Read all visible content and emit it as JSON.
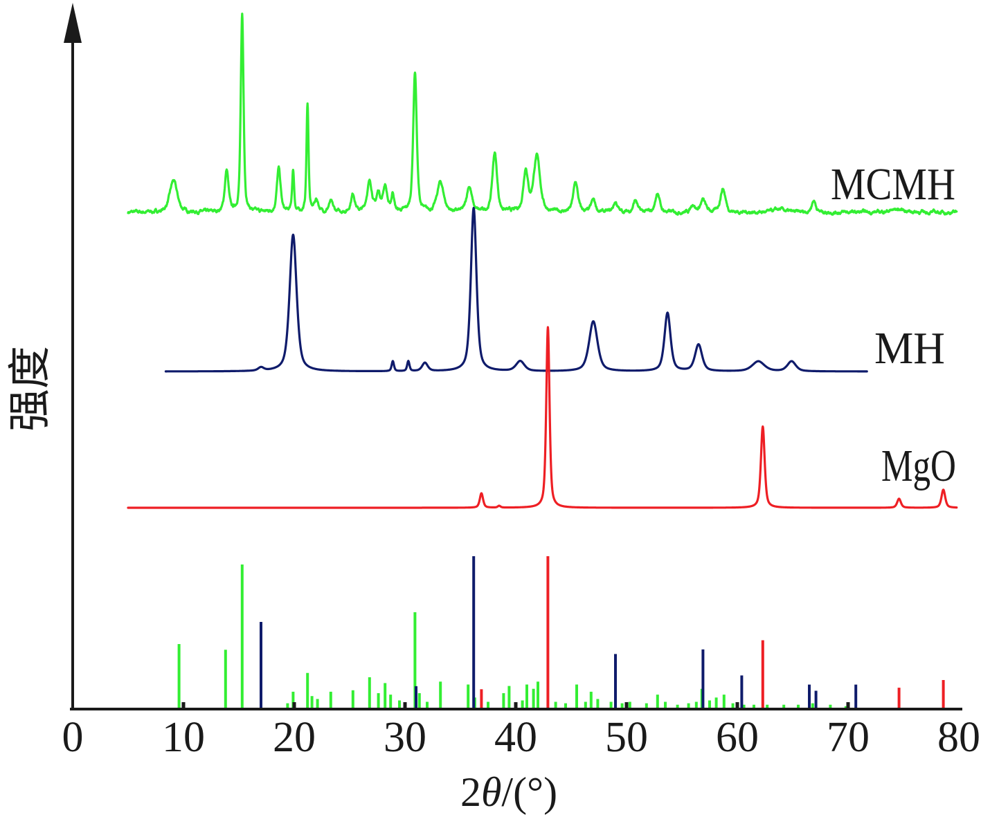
{
  "chart_data": {
    "type": "line",
    "xlabel": "2θ/(°)",
    "ylabel": "强度",
    "xlim": [
      0,
      80
    ],
    "xticks": [
      0,
      10,
      20,
      30,
      40,
      50,
      60,
      70,
      80
    ],
    "yticks": [],
    "grid": false,
    "series": [
      {
        "name": "MCMH",
        "color": "#33ee33",
        "x_range": [
          5,
          79.8
        ],
        "peaks": [
          [
            9.1,
            16,
            0.8
          ],
          [
            13.9,
            21,
            0.4
          ],
          [
            15.3,
            100,
            0.3
          ],
          [
            18.6,
            22,
            0.4
          ],
          [
            19.9,
            21,
            0.22
          ],
          [
            21.2,
            55,
            0.22
          ],
          [
            22.0,
            6,
            0.45
          ],
          [
            23.3,
            5,
            0.45
          ],
          [
            25.3,
            9,
            0.45
          ],
          [
            26.8,
            15,
            0.55
          ],
          [
            27.6,
            9,
            0.4
          ],
          [
            28.2,
            13,
            0.45
          ],
          [
            28.9,
            9,
            0.3
          ],
          [
            30.9,
            71,
            0.38
          ],
          [
            33.2,
            15,
            0.7
          ],
          [
            35.8,
            13,
            0.55
          ],
          [
            38.1,
            30,
            0.5
          ],
          [
            40.9,
            21,
            0.5
          ],
          [
            41.9,
            28,
            0.7
          ],
          [
            45.4,
            15,
            0.5
          ],
          [
            47.0,
            6,
            0.45
          ],
          [
            49.0,
            5,
            0.45
          ],
          [
            50.8,
            6,
            0.45
          ],
          [
            52.8,
            10,
            0.45
          ],
          [
            56.0,
            4,
            0.45
          ],
          [
            56.9,
            6,
            0.55
          ],
          [
            58.7,
            12,
            0.55
          ],
          [
            63.8,
            1.5,
            1.2
          ],
          [
            66.9,
            6,
            0.45
          ],
          [
            74.5,
            1.5,
            1.8
          ]
        ],
        "reference_lines": [
          [
            9.6,
            45
          ],
          [
            13.8,
            41
          ],
          [
            15.3,
            100
          ],
          [
            19.4,
            4
          ],
          [
            19.9,
            12
          ],
          [
            21.2,
            25
          ],
          [
            21.6,
            9
          ],
          [
            22.1,
            7
          ],
          [
            23.3,
            12
          ],
          [
            25.3,
            13
          ],
          [
            26.8,
            22
          ],
          [
            27.6,
            11
          ],
          [
            28.2,
            18
          ],
          [
            28.7,
            10
          ],
          [
            29.5,
            6
          ],
          [
            30.9,
            67
          ],
          [
            31.3,
            11
          ],
          [
            32.0,
            5
          ],
          [
            33.2,
            19
          ],
          [
            35.7,
            17
          ],
          [
            36.3,
            8
          ],
          [
            37.5,
            5
          ],
          [
            38.9,
            11
          ],
          [
            39.4,
            16
          ],
          [
            40.6,
            6
          ],
          [
            41.0,
            17
          ],
          [
            41.6,
            14
          ],
          [
            42.0,
            19
          ],
          [
            43.6,
            5
          ],
          [
            44.5,
            4
          ],
          [
            45.5,
            17
          ],
          [
            46.3,
            5
          ],
          [
            46.8,
            12
          ],
          [
            47.4,
            7
          ],
          [
            48.6,
            5
          ],
          [
            49.6,
            4
          ],
          [
            50.3,
            5
          ],
          [
            51.8,
            4
          ],
          [
            52.8,
            10
          ],
          [
            53.5,
            5
          ],
          [
            54.6,
            3
          ],
          [
            55.6,
            4
          ],
          [
            56.3,
            5
          ],
          [
            56.8,
            14
          ],
          [
            57.5,
            6
          ],
          [
            58.1,
            8
          ],
          [
            58.8,
            10
          ],
          [
            59.6,
            4
          ],
          [
            60.6,
            3
          ],
          [
            61.5,
            3
          ],
          [
            62.7,
            3
          ],
          [
            64.2,
            3
          ],
          [
            65.5,
            3
          ],
          [
            66.8,
            4
          ],
          [
            68.4,
            3
          ],
          [
            69.8,
            2
          ]
        ]
      },
      {
        "name": "MH",
        "color": "#0f1b6b",
        "x_range": [
          8.4,
          71.7
        ],
        "peaks": [
          [
            17.0,
            2,
            0.6
          ],
          [
            19.9,
            82,
            0.75
          ],
          [
            28.9,
            6,
            0.25
          ],
          [
            30.3,
            6,
            0.25
          ],
          [
            31.8,
            5,
            0.6
          ],
          [
            36.2,
            98,
            0.6
          ],
          [
            40.4,
            6,
            0.9
          ],
          [
            47.0,
            30,
            0.9
          ],
          [
            53.7,
            35,
            0.65
          ],
          [
            56.5,
            16,
            0.75
          ],
          [
            61.9,
            6,
            1.3
          ],
          [
            64.9,
            6,
            0.9
          ]
        ],
        "reference_lines": [
          [
            17.0,
            57
          ],
          [
            31.0,
            15
          ],
          [
            36.2,
            100
          ],
          [
            49.0,
            36
          ],
          [
            56.9,
            39
          ],
          [
            60.4,
            22
          ],
          [
            66.5,
            16
          ],
          [
            67.1,
            12
          ],
          [
            70.7,
            16
          ]
        ]
      },
      {
        "name": "MgO",
        "color": "#ee1f24",
        "x_range": [
          5,
          79.8
        ],
        "peaks": [
          [
            36.9,
            8,
            0.35
          ],
          [
            38.5,
            1,
            0.3
          ],
          [
            42.9,
            100,
            0.35
          ],
          [
            62.3,
            45,
            0.4
          ],
          [
            74.6,
            5,
            0.4
          ],
          [
            78.6,
            10,
            0.4
          ]
        ],
        "reference_lines": [
          [
            36.9,
            13
          ],
          [
            42.9,
            100
          ],
          [
            62.3,
            45
          ],
          [
            74.6,
            14
          ],
          [
            78.6,
            19
          ]
        ]
      }
    ]
  }
}
